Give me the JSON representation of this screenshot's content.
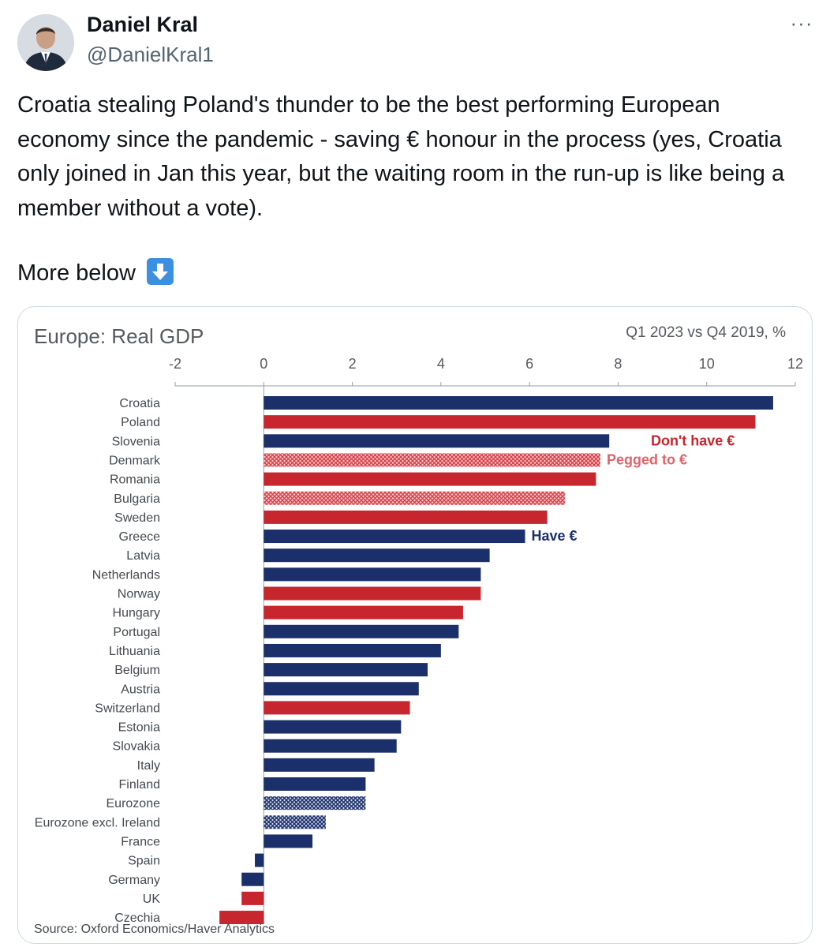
{
  "author": {
    "name": "Daniel Kral",
    "handle": "@DanielKral1"
  },
  "more_icon": "more-horizontal-icon",
  "more_icon_glyph": "···",
  "tweet": {
    "text": "Croatia stealing Poland's thunder to be the best performing European economy since the pandemic - saving € honour in the process (yes, Croatia only joined in Jan this year, but the waiting room in the run-up is like being a member without a vote).",
    "more_below": "More below",
    "emoji": "down-arrow-emoji"
  },
  "colors": {
    "have_euro": "#1b2f6b",
    "dont_have_euro": "#c8262e",
    "pegged_to_euro": "#e05b62",
    "pegged_label": "#e0636a"
  },
  "chart_data": {
    "type": "bar",
    "orientation": "horizontal",
    "title": "Europe: Real GDP",
    "subtitle": "Q1 2023 vs Q4 2019, %",
    "xlim": [
      -2,
      12
    ],
    "xticks": [
      -2,
      0,
      2,
      4,
      6,
      8,
      10,
      12
    ],
    "source": "Source: Oxford Economics/Haver Analytics",
    "legend": {
      "dont_have": "Don't have €",
      "pegged": "Pegged to €",
      "have": "Have €"
    },
    "bars": [
      {
        "label": "Croatia",
        "value": 11.5,
        "group": "have"
      },
      {
        "label": "Poland",
        "value": 11.1,
        "group": "dont_have"
      },
      {
        "label": "Slovenia",
        "value": 7.8,
        "group": "have"
      },
      {
        "label": "Denmark",
        "value": 7.6,
        "group": "pegged"
      },
      {
        "label": "Romania",
        "value": 7.5,
        "group": "dont_have"
      },
      {
        "label": "Bulgaria",
        "value": 6.8,
        "group": "pegged"
      },
      {
        "label": "Sweden",
        "value": 6.4,
        "group": "dont_have"
      },
      {
        "label": "Greece",
        "value": 5.9,
        "group": "have"
      },
      {
        "label": "Latvia",
        "value": 5.1,
        "group": "have"
      },
      {
        "label": "Netherlands",
        "value": 4.9,
        "group": "have"
      },
      {
        "label": "Norway",
        "value": 4.9,
        "group": "dont_have"
      },
      {
        "label": "Hungary",
        "value": 4.5,
        "group": "dont_have"
      },
      {
        "label": "Portugal",
        "value": 4.4,
        "group": "have"
      },
      {
        "label": "Lithuania",
        "value": 4.0,
        "group": "have"
      },
      {
        "label": "Belgium",
        "value": 3.7,
        "group": "have"
      },
      {
        "label": "Austria",
        "value": 3.5,
        "group": "have"
      },
      {
        "label": "Switzerland",
        "value": 3.3,
        "group": "dont_have"
      },
      {
        "label": "Estonia",
        "value": 3.1,
        "group": "have"
      },
      {
        "label": "Slovakia",
        "value": 3.0,
        "group": "have"
      },
      {
        "label": "Italy",
        "value": 2.5,
        "group": "have"
      },
      {
        "label": "Finland",
        "value": 2.3,
        "group": "have"
      },
      {
        "label": "Eurozone",
        "value": 2.3,
        "group": "have_agg"
      },
      {
        "label": "Eurozone excl. Ireland",
        "value": 1.4,
        "group": "have_agg"
      },
      {
        "label": "France",
        "value": 1.1,
        "group": "have"
      },
      {
        "label": "Spain",
        "value": -0.2,
        "group": "have"
      },
      {
        "label": "Germany",
        "value": -0.5,
        "group": "have"
      },
      {
        "label": "UK",
        "value": -0.5,
        "group": "dont_have"
      },
      {
        "label": "Czechia",
        "value": -1.0,
        "group": "dont_have"
      }
    ]
  }
}
